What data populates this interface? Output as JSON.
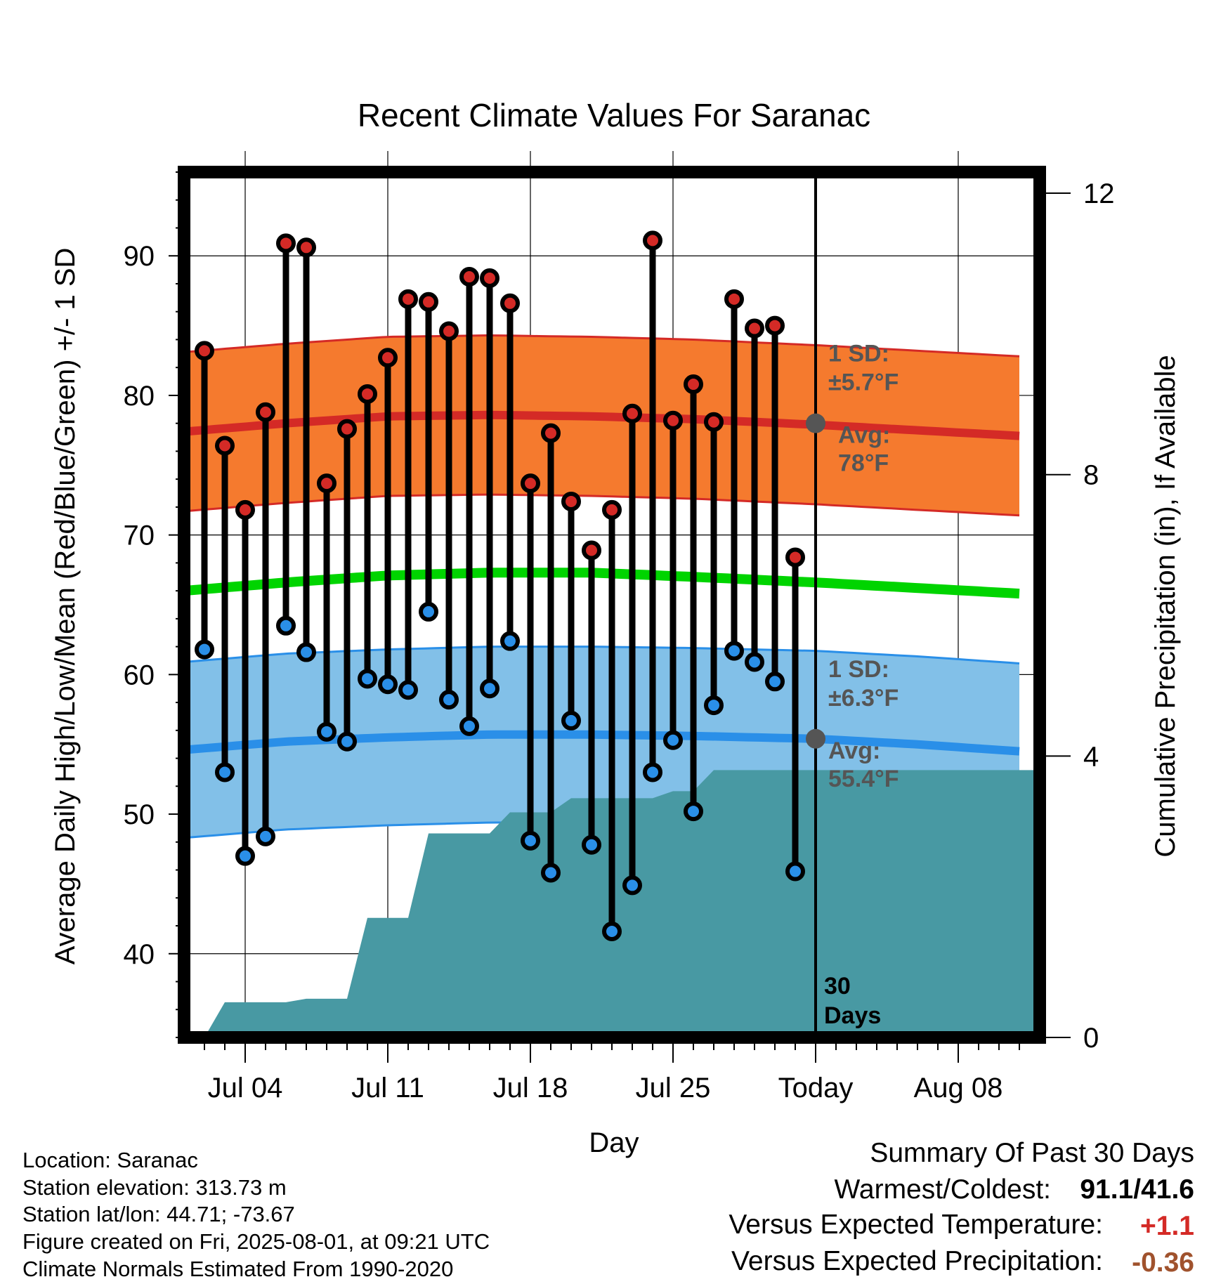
{
  "chart_data": {
    "type": "line",
    "title": "Recent Climate Values For Saranac",
    "xlabel": "Day",
    "ylabel": "Average Daily High/Low/Mean (Red/Blue/Green) +/- 1 SD",
    "y2label": "Cumulative Precipitation (in), If Available",
    "x_start": "2025-07-01",
    "x_end": "2025-08-12",
    "xticks": [
      {
        "date": "2025-07-04",
        "label": "Jul 04"
      },
      {
        "date": "2025-07-11",
        "label": "Jul 11"
      },
      {
        "date": "2025-07-18",
        "label": "Jul 18"
      },
      {
        "date": "2025-07-25",
        "label": "Jul 25"
      },
      {
        "date": "2025-08-01",
        "label": "Today"
      },
      {
        "date": "2025-08-08",
        "label": "Aug 08"
      }
    ],
    "ylim": [
      34,
      96
    ],
    "yticks": [
      40,
      50,
      60,
      70,
      80,
      90
    ],
    "y2lim": [
      0,
      12.3
    ],
    "y2ticks": [
      0,
      4,
      8,
      12
    ],
    "grid": true,
    "today": "2025-08-01",
    "window_label": "30\nDays",
    "dates": [
      "2025-07-02",
      "2025-07-03",
      "2025-07-04",
      "2025-07-05",
      "2025-07-06",
      "2025-07-07",
      "2025-07-08",
      "2025-07-09",
      "2025-07-10",
      "2025-07-11",
      "2025-07-12",
      "2025-07-13",
      "2025-07-14",
      "2025-07-15",
      "2025-07-16",
      "2025-07-17",
      "2025-07-18",
      "2025-07-19",
      "2025-07-20",
      "2025-07-21",
      "2025-07-22",
      "2025-07-23",
      "2025-07-24",
      "2025-07-25",
      "2025-07-26",
      "2025-07-27",
      "2025-07-28",
      "2025-07-29",
      "2025-07-30",
      "2025-07-31"
    ],
    "series": [
      {
        "name": "High",
        "color": "#d42a26",
        "values": [
          83.2,
          76.4,
          71.8,
          78.8,
          90.9,
          90.6,
          73.7,
          77.6,
          80.1,
          82.7,
          86.9,
          86.7,
          84.6,
          88.5,
          88.4,
          86.6,
          73.7,
          77.3,
          72.4,
          68.9,
          71.8,
          78.7,
          91.1,
          78.2,
          80.8,
          78.1,
          86.9,
          84.8,
          85.0,
          68.4
        ]
      },
      {
        "name": "Low",
        "color": "#2a8fe8",
        "values": [
          61.8,
          53.0,
          47.0,
          48.4,
          63.5,
          61.6,
          55.9,
          55.2,
          59.7,
          59.3,
          58.9,
          64.5,
          58.2,
          56.3,
          59.0,
          62.4,
          48.1,
          45.8,
          56.7,
          47.8,
          41.6,
          44.9,
          53.0,
          55.3,
          50.2,
          57.8,
          61.7,
          60.9,
          59.5,
          45.9
        ]
      }
    ],
    "normal_high": {
      "dates": [
        "2025-07-01",
        "2025-07-06",
        "2025-07-11",
        "2025-07-16",
        "2025-07-21",
        "2025-07-26",
        "2025-08-01",
        "2025-08-06",
        "2025-08-11"
      ],
      "values": [
        77.4,
        78.0,
        78.5,
        78.6,
        78.5,
        78.3,
        77.9,
        77.5,
        77.1
      ],
      "sd": 5.7,
      "color": "#f57a2e",
      "line_color": "#d42a26"
    },
    "normal_low": {
      "dates": [
        "2025-07-01",
        "2025-07-06",
        "2025-07-11",
        "2025-07-16",
        "2025-07-21",
        "2025-07-26",
        "2025-08-01",
        "2025-08-06",
        "2025-08-11"
      ],
      "values": [
        54.6,
        55.2,
        55.5,
        55.7,
        55.7,
        55.6,
        55.4,
        55.0,
        54.5
      ],
      "sd": 6.3,
      "color": "#82c0e8",
      "line_color": "#2a8fe8"
    },
    "normal_mean": {
      "dates": [
        "2025-07-01",
        "2025-07-06",
        "2025-07-11",
        "2025-07-16",
        "2025-07-21",
        "2025-07-26",
        "2025-08-01",
        "2025-08-06",
        "2025-08-11"
      ],
      "values": [
        66.0,
        66.6,
        67.1,
        67.3,
        67.3,
        67.0,
        66.6,
        66.2,
        65.8
      ],
      "color": "#00d400"
    },
    "precip": {
      "color": "#4899a3",
      "dates": [
        "2025-07-01",
        "2025-07-02",
        "2025-07-03",
        "2025-07-04",
        "2025-07-05",
        "2025-07-06",
        "2025-07-07",
        "2025-07-08",
        "2025-07-09",
        "2025-07-10",
        "2025-07-11",
        "2025-07-12",
        "2025-07-13",
        "2025-07-14",
        "2025-07-15",
        "2025-07-16",
        "2025-07-17",
        "2025-07-18",
        "2025-07-19",
        "2025-07-20",
        "2025-07-21",
        "2025-07-22",
        "2025-07-23",
        "2025-07-24",
        "2025-07-25",
        "2025-07-26",
        "2025-07-27",
        "2025-07-28",
        "2025-08-12"
      ],
      "values": [
        0,
        0.0,
        0.5,
        0.5,
        0.5,
        0.5,
        0.55,
        0.55,
        0.55,
        1.7,
        1.7,
        1.7,
        2.9,
        2.9,
        2.9,
        2.9,
        3.2,
        3.2,
        3.2,
        3.4,
        3.4,
        3.4,
        3.4,
        3.4,
        3.5,
        3.5,
        3.8,
        3.8,
        3.8
      ]
    },
    "annotations": {
      "high_sd": "1 SD:",
      "high_sd_value": "±5.7°F",
      "high_avg": "Avg:",
      "high_avg_value": "78°F",
      "low_sd": "1 SD:",
      "low_sd_value": "±6.3°F",
      "low_avg": "Avg:",
      "low_avg_value": "55.4°F",
      "today_high": 78,
      "today_low": 55.4
    }
  },
  "info": {
    "location": "Location: Saranac",
    "elevation": "Station elevation: 313.73 m",
    "latlon": "Station lat/lon: 44.71; -73.67",
    "created": "Figure created on Fri, 2025-08-01, at 09:21 UTC",
    "normals": "Climate Normals Estimated From 1990-2020"
  },
  "summary": {
    "title": "Summary Of Past 30 Days",
    "warm_cold_label": "Warmest/Coldest:",
    "warm_cold_value": "91.1/41.6",
    "temp_label": "Versus Expected Temperature:",
    "temp_value": "+1.1",
    "temp_color": "#d42a26",
    "precip_label": "Versus Expected Precipitation:",
    "precip_value": "-0.36",
    "precip_color": "#a0522d"
  }
}
